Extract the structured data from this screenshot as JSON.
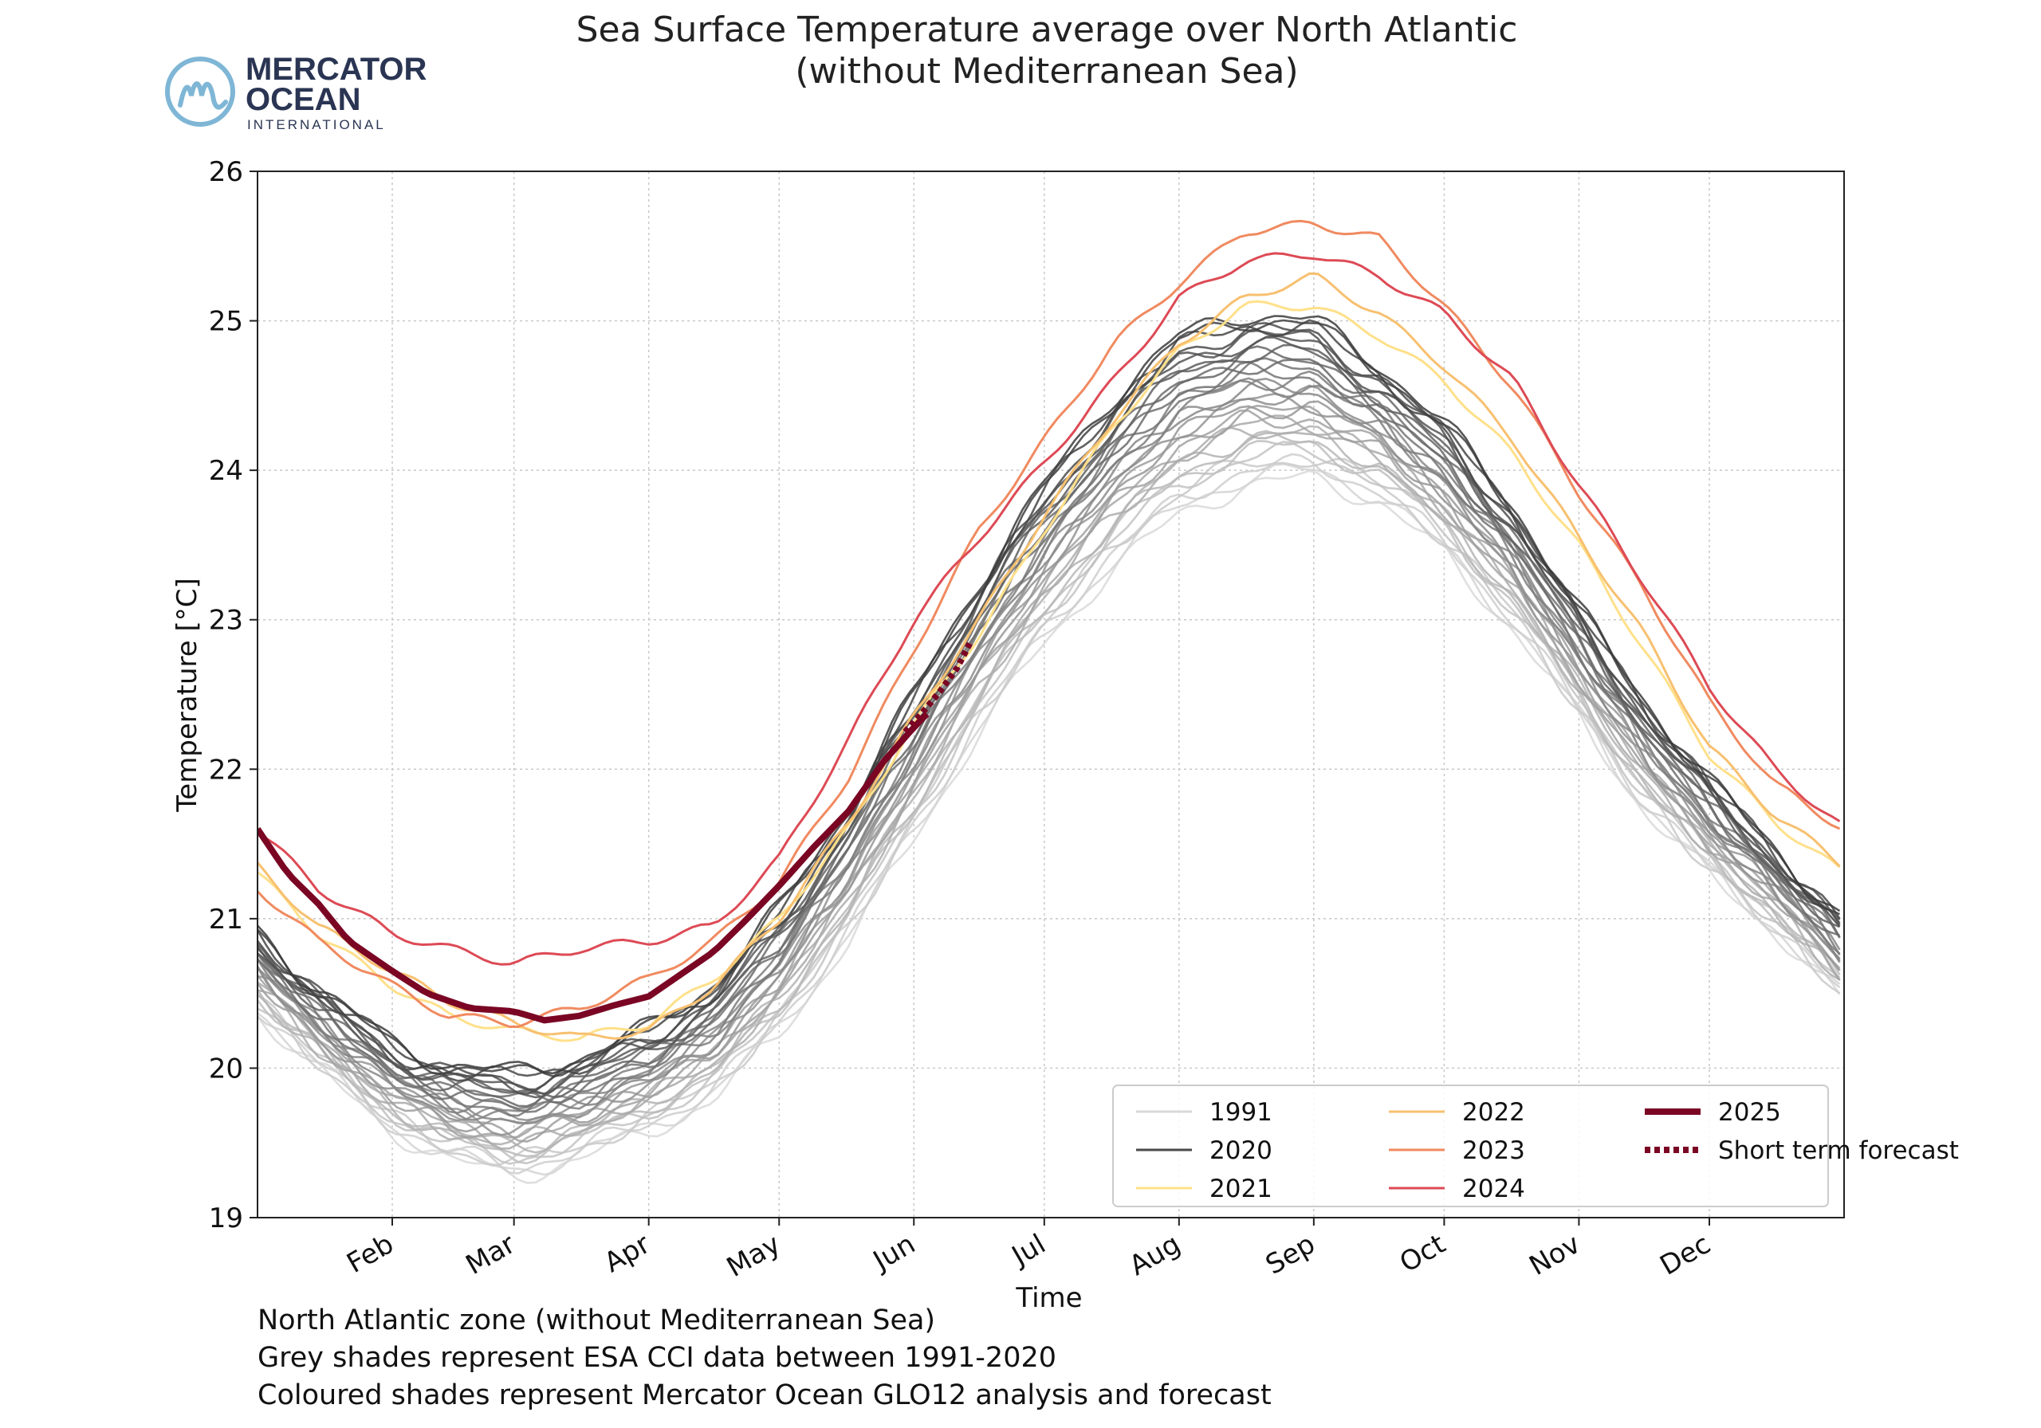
{
  "logo": {
    "line1": "MERCATOR",
    "line2": "OCEAN",
    "line3": "INTERNATIONAL",
    "ring_color": "#7fb6d6",
    "text_color": "#2a3553"
  },
  "notes": [
    "North Atlantic zone (without Mediterranean Sea)",
    "Grey shades represent ESA CCI data between 1991-2020",
    "Coloured shades represent Mercator Ocean GLO12 analysis and forecast"
  ],
  "chart_data": {
    "type": "line",
    "title": "Sea Surface Temperature average over North Atlantic",
    "subtitle": "(without Mediterranean Sea)",
    "xlabel": "Time",
    "ylabel": "Temperature [°C]",
    "ylim": [
      19,
      26
    ],
    "xlim": [
      1,
      366
    ],
    "yticks": [
      19,
      20,
      21,
      22,
      23,
      24,
      25,
      26
    ],
    "months": [
      {
        "label": "Feb",
        "day": 32
      },
      {
        "label": "Mar",
        "day": 60
      },
      {
        "label": "Apr",
        "day": 91
      },
      {
        "label": "May",
        "day": 121
      },
      {
        "label": "Jun",
        "day": 152
      },
      {
        "label": "Jul",
        "day": 182
      },
      {
        "label": "Aug",
        "day": 213
      },
      {
        "label": "Sep",
        "day": 244
      },
      {
        "label": "Oct",
        "day": 274
      },
      {
        "label": "Nov",
        "day": 305
      },
      {
        "label": "Dec",
        "day": 335
      }
    ],
    "grid": true,
    "legend_position": "bottom-right",
    "legend": [
      {
        "label": "1991",
        "color": "#d9d9d9",
        "style": "solid",
        "width": 3
      },
      {
        "label": "2020",
        "color": "#4a4a4a",
        "style": "solid",
        "width": 3
      },
      {
        "label": "2021",
        "color": "#ffe08a",
        "style": "solid",
        "width": 3
      },
      {
        "label": "2022",
        "color": "#f7c070",
        "style": "solid",
        "width": 3
      },
      {
        "label": "2023",
        "color": "#f08a60",
        "style": "solid",
        "width": 3
      },
      {
        "label": "2024",
        "color": "#dd4a55",
        "style": "solid",
        "width": 3
      },
      {
        "label": "2025",
        "color": "#7a0624",
        "style": "solid",
        "width": 8
      },
      {
        "label": "Short term forecast",
        "color": "#7a0624",
        "style": "dotted",
        "width": 8
      }
    ],
    "grey_band": {
      "years": "1991-2020",
      "count": 30,
      "light_color": "#d9d9d9",
      "dark_color": "#3a3a3a",
      "x": [
        1,
        15,
        32,
        45,
        60,
        75,
        91,
        106,
        121,
        137,
        152,
        167,
        182,
        198,
        213,
        228,
        244,
        259,
        274,
        290,
        305,
        320,
        335,
        350,
        366
      ],
      "low": [
        20.35,
        19.95,
        19.55,
        19.35,
        19.25,
        19.35,
        19.55,
        19.75,
        20.2,
        20.8,
        21.5,
        22.2,
        22.8,
        23.3,
        23.65,
        23.85,
        23.9,
        23.75,
        23.4,
        22.9,
        22.3,
        21.7,
        21.25,
        20.9,
        20.4
      ],
      "high": [
        20.95,
        20.55,
        20.2,
        20.05,
        20.0,
        20.1,
        20.3,
        20.6,
        21.1,
        21.8,
        22.55,
        23.3,
        23.95,
        24.55,
        24.95,
        25.1,
        25.05,
        24.75,
        24.35,
        23.8,
        23.1,
        22.5,
        21.95,
        21.5,
        21.0
      ]
    },
    "series": [
      {
        "name": "2021",
        "color": "#ffe08a",
        "width": 3,
        "x": [
          1,
          15,
          32,
          45,
          60,
          75,
          91,
          106,
          121,
          137,
          152,
          167,
          182,
          198,
          213,
          228,
          244,
          259,
          274,
          290,
          305,
          320,
          335,
          350,
          366
        ],
        "values": [
          21.3,
          20.9,
          20.55,
          20.35,
          20.25,
          20.2,
          20.3,
          20.6,
          21.0,
          21.6,
          22.3,
          22.9,
          23.6,
          24.3,
          24.8,
          25.1,
          25.1,
          24.9,
          24.6,
          24.1,
          23.5,
          22.8,
          22.1,
          21.65,
          21.3
        ]
      },
      {
        "name": "2022",
        "color": "#f7c070",
        "width": 3,
        "x": [
          1,
          15,
          32,
          45,
          60,
          75,
          91,
          106,
          121,
          137,
          152,
          167,
          182,
          198,
          213,
          228,
          244,
          259,
          274,
          290,
          305,
          320,
          335,
          350,
          366
        ],
        "values": [
          21.35,
          20.95,
          20.65,
          20.45,
          20.3,
          20.2,
          20.25,
          20.55,
          21.0,
          21.65,
          22.35,
          23.0,
          23.7,
          24.35,
          24.85,
          25.15,
          25.3,
          25.05,
          24.7,
          24.2,
          23.55,
          22.9,
          22.15,
          21.7,
          21.35
        ]
      },
      {
        "name": "2023",
        "color": "#f08a60",
        "width": 3,
        "x": [
          1,
          15,
          32,
          45,
          60,
          75,
          91,
          106,
          121,
          137,
          152,
          167,
          182,
          198,
          213,
          228,
          244,
          259,
          274,
          290,
          305,
          320,
          335,
          350,
          366
        ],
        "values": [
          21.2,
          20.85,
          20.55,
          20.35,
          20.3,
          20.4,
          20.6,
          20.85,
          21.25,
          21.95,
          22.8,
          23.6,
          24.2,
          24.85,
          25.25,
          25.6,
          25.65,
          25.55,
          25.1,
          24.55,
          23.85,
          23.2,
          22.45,
          21.9,
          21.6
        ]
      },
      {
        "name": "2024",
        "color": "#dd4a55",
        "width": 3,
        "x": [
          1,
          15,
          32,
          45,
          60,
          75,
          91,
          106,
          121,
          137,
          152,
          167,
          182,
          198,
          213,
          228,
          244,
          259,
          274,
          290,
          305,
          320,
          335,
          350,
          366
        ],
        "values": [
          21.6,
          21.2,
          20.9,
          20.8,
          20.7,
          20.8,
          20.85,
          20.95,
          21.4,
          22.2,
          23.0,
          23.55,
          24.05,
          24.6,
          25.15,
          25.4,
          25.45,
          25.3,
          25.05,
          24.6,
          23.9,
          23.25,
          22.55,
          22.0,
          21.6
        ]
      },
      {
        "name": "2025",
        "color": "#7a0624",
        "width": 8,
        "x": [
          1,
          8,
          15,
          22,
          32,
          40,
          50,
          60,
          67,
          75,
          83,
          91,
          98,
          106,
          113,
          121,
          129,
          137,
          145,
          152,
          156
        ],
        "values": [
          21.6,
          21.3,
          21.1,
          20.85,
          20.65,
          20.5,
          20.4,
          20.38,
          20.32,
          20.35,
          20.42,
          20.48,
          20.62,
          20.78,
          20.98,
          21.22,
          21.48,
          21.72,
          22.05,
          22.28,
          22.4
        ]
      },
      {
        "name": "Short term forecast",
        "color": "#7a0624",
        "width": 8,
        "dotted": true,
        "x": [
          150,
          154,
          158,
          162,
          165
        ],
        "values": [
          22.25,
          22.38,
          22.52,
          22.68,
          22.85
        ]
      }
    ]
  }
}
